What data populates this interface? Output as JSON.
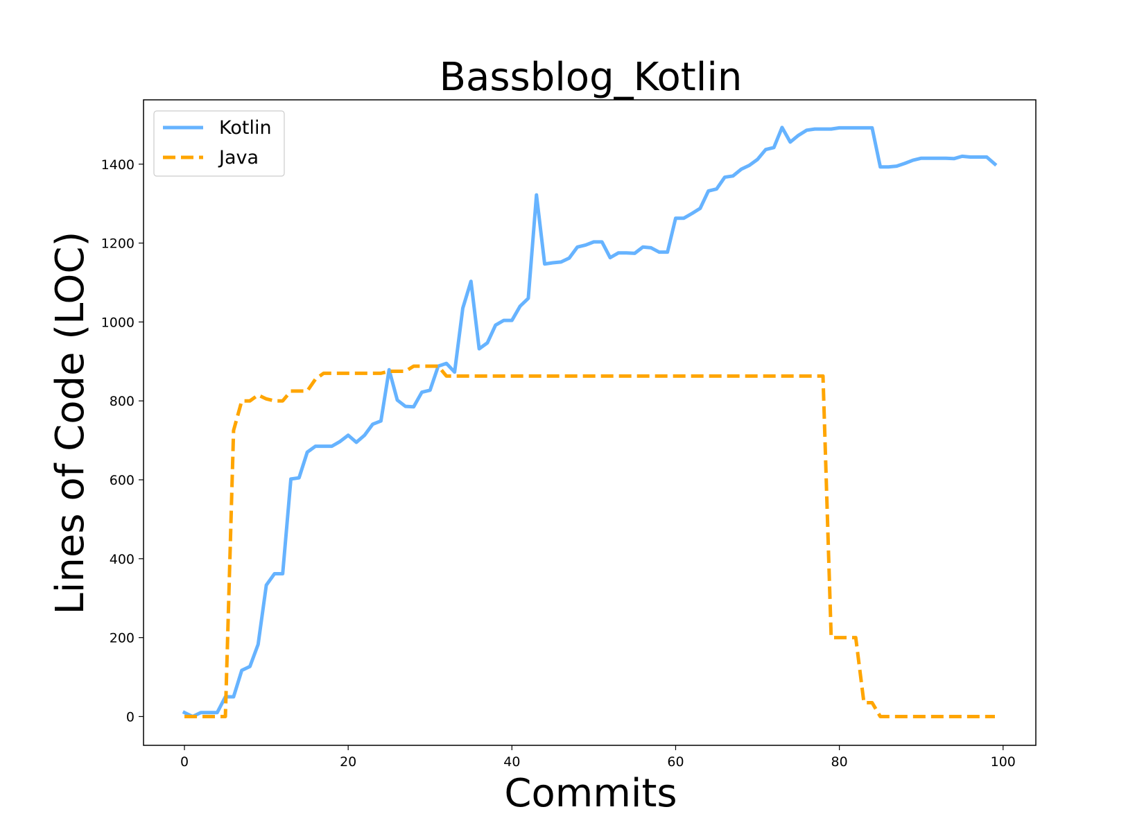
{
  "chart_data": {
    "type": "line",
    "title": "Bassblog_Kotlin",
    "xlabel": "Commits",
    "ylabel": "Lines of Code (LOC)",
    "xlim": [
      -5,
      104
    ],
    "ylim": [
      -73,
      1563
    ],
    "xticks": [
      0,
      20,
      40,
      60,
      80,
      100
    ],
    "yticks": [
      0,
      200,
      400,
      600,
      800,
      1000,
      1200,
      1400
    ],
    "grid": false,
    "legend_position": "upper-left",
    "series": [
      {
        "name": "Kotlin",
        "color": "#66b3ff",
        "style": "solid",
        "values": [
          10,
          0,
          10,
          10,
          10,
          50,
          50,
          117,
          127,
          183,
          333,
          362,
          362,
          602,
          605,
          670,
          685,
          685,
          685,
          697,
          713,
          695,
          713,
          741,
          749,
          879,
          802,
          786,
          785,
          822,
          827,
          888,
          895,
          873,
          1035,
          1103,
          932,
          947,
          992,
          1004,
          1004,
          1040,
          1060,
          1322,
          1147,
          1150,
          1152,
          1162,
          1190,
          1195,
          1203,
          1203,
          1163,
          1175,
          1175,
          1174,
          1190,
          1188,
          1177,
          1177,
          1263,
          1263,
          1275,
          1288,
          1332,
          1337,
          1367,
          1370,
          1387,
          1397,
          1412,
          1437,
          1442,
          1493,
          1456,
          1473,
          1486,
          1489,
          1489,
          1489,
          1492,
          1492,
          1492,
          1492,
          1492,
          1393,
          1393,
          1395,
          1402,
          1410,
          1415,
          1415,
          1415,
          1415,
          1414,
          1420,
          1418,
          1418,
          1418,
          1400
        ]
      },
      {
        "name": "Java",
        "color": "#ffa500",
        "style": "dashed",
        "values": [
          0,
          0,
          0,
          0,
          0,
          0,
          725,
          800,
          800,
          815,
          805,
          800,
          800,
          825,
          825,
          825,
          855,
          870,
          870,
          870,
          870,
          870,
          870,
          870,
          870,
          875,
          875,
          875,
          888,
          888,
          888,
          888,
          863,
          863,
          863,
          863,
          863,
          863,
          863,
          863,
          863,
          863,
          863,
          863,
          863,
          863,
          863,
          863,
          863,
          863,
          863,
          863,
          863,
          863,
          863,
          863,
          863,
          863,
          863,
          863,
          863,
          863,
          863,
          863,
          863,
          863,
          863,
          863,
          863,
          863,
          863,
          863,
          863,
          863,
          863,
          863,
          863,
          863,
          863,
          200,
          200,
          200,
          200,
          35,
          35,
          0,
          0,
          0,
          0,
          0,
          0,
          0,
          0,
          0,
          0,
          0,
          0,
          0,
          0,
          0
        ]
      }
    ]
  }
}
